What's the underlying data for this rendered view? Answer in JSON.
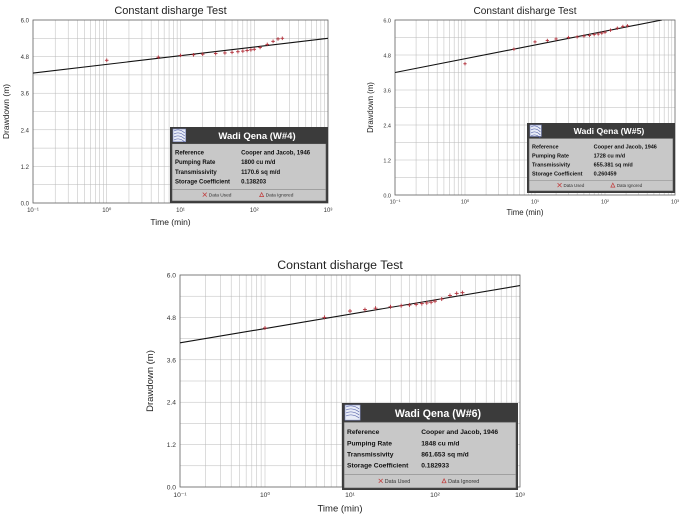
{
  "chart_data": [
    {
      "type": "scatter",
      "title": "Constant disharge Test",
      "xlabel": "Time (min)",
      "ylabel": "Drawdown (m)",
      "xscale": "log",
      "xlim": [
        0.1,
        1000
      ],
      "ylim": [
        0,
        6
      ],
      "x_ticks": [
        "10⁻¹",
        "10⁰",
        "10¹",
        "10²",
        "10³"
      ],
      "y_ticks": [
        "0.0",
        "1.2",
        "2.4",
        "3.6",
        "4.8",
        "6.0"
      ],
      "grid": true,
      "points": [
        {
          "x": 1,
          "y": 4.68
        },
        {
          "x": 5,
          "y": 4.78
        },
        {
          "x": 10,
          "y": 4.84
        },
        {
          "x": 15,
          "y": 4.86
        },
        {
          "x": 20,
          "y": 4.88
        },
        {
          "x": 30,
          "y": 4.9
        },
        {
          "x": 40,
          "y": 4.92
        },
        {
          "x": 50,
          "y": 4.94
        },
        {
          "x": 60,
          "y": 4.96
        },
        {
          "x": 70,
          "y": 4.98
        },
        {
          "x": 80,
          "y": 5.0
        },
        {
          "x": 90,
          "y": 5.02
        },
        {
          "x": 100,
          "y": 5.04
        },
        {
          "x": 120,
          "y": 5.1
        },
        {
          "x": 150,
          "y": 5.2
        },
        {
          "x": 180,
          "y": 5.3
        },
        {
          "x": 210,
          "y": 5.38
        },
        {
          "x": 240,
          "y": 5.4
        }
      ],
      "fit_line": {
        "x": [
          0.1,
          1000
        ],
        "y": [
          4.26,
          5.4
        ]
      },
      "info_box": {
        "title": "Wadi Qena (W#4)",
        "rows": [
          {
            "label": "Reference",
            "value": "Cooper and Jacob, 1946"
          },
          {
            "label": "Pumping Rate",
            "value": "1800  cu m/d"
          },
          {
            "label": "Transmissivity",
            "value": "1170.6  sq m/d"
          },
          {
            "label": "Storage Coefficient",
            "value": "0.138203"
          }
        ],
        "legend": [
          "Data Used",
          "Data Ignored"
        ]
      }
    },
    {
      "type": "scatter",
      "title": "Constant disharge Test",
      "xlabel": "Time (min)",
      "ylabel": "Drawdown (m)",
      "xscale": "log",
      "xlim": [
        0.1,
        1000
      ],
      "ylim": [
        0,
        6
      ],
      "x_ticks": [
        "10⁻¹",
        "10⁰",
        "10¹",
        "10²",
        "10³"
      ],
      "y_ticks": [
        "0.0",
        "1.2",
        "2.4",
        "3.6",
        "4.8",
        "6.0"
      ],
      "grid": true,
      "points": [
        {
          "x": 1,
          "y": 4.5
        },
        {
          "x": 5,
          "y": 5.0
        },
        {
          "x": 10,
          "y": 5.25
        },
        {
          "x": 15,
          "y": 5.3
        },
        {
          "x": 20,
          "y": 5.35
        },
        {
          "x": 30,
          "y": 5.4
        },
        {
          "x": 40,
          "y": 5.42
        },
        {
          "x": 50,
          "y": 5.45
        },
        {
          "x": 60,
          "y": 5.47
        },
        {
          "x": 70,
          "y": 5.5
        },
        {
          "x": 80,
          "y": 5.52
        },
        {
          "x": 90,
          "y": 5.55
        },
        {
          "x": 100,
          "y": 5.58
        },
        {
          "x": 120,
          "y": 5.65
        },
        {
          "x": 150,
          "y": 5.72
        },
        {
          "x": 180,
          "y": 5.78
        },
        {
          "x": 210,
          "y": 5.8
        }
      ],
      "fit_line": {
        "x": [
          0.1,
          650
        ],
        "y": [
          4.2,
          6.0
        ]
      },
      "info_box": {
        "title": "Wadi Qena (W#5)",
        "rows": [
          {
            "label": "Reference",
            "value": "Cooper and Jacob, 1946"
          },
          {
            "label": "Pumping Rate",
            "value": "1728  cu m/d"
          },
          {
            "label": "Transmissivity",
            "value": "655.381  sq m/d"
          },
          {
            "label": "Storage Coefficient",
            "value": "0.260459"
          }
        ],
        "legend": [
          "Data Used",
          "Data Ignored"
        ]
      }
    },
    {
      "type": "scatter",
      "title": "Constant disharge Test",
      "xlabel": "Time (min)",
      "ylabel": "Drawdown (m)",
      "xscale": "log",
      "xlim": [
        0.1,
        1000
      ],
      "ylim": [
        0,
        6
      ],
      "x_ticks": [
        "10⁻¹",
        "10⁰",
        "10¹",
        "10²",
        "10³"
      ],
      "y_ticks": [
        "0.0",
        "1.2",
        "2.4",
        "3.6",
        "4.8",
        "6.0"
      ],
      "grid": true,
      "points": [
        {
          "x": 1,
          "y": 4.5
        },
        {
          "x": 5,
          "y": 4.8
        },
        {
          "x": 10,
          "y": 4.98
        },
        {
          "x": 15,
          "y": 5.02
        },
        {
          "x": 20,
          "y": 5.06
        },
        {
          "x": 30,
          "y": 5.1
        },
        {
          "x": 40,
          "y": 5.13
        },
        {
          "x": 50,
          "y": 5.15
        },
        {
          "x": 60,
          "y": 5.17
        },
        {
          "x": 70,
          "y": 5.19
        },
        {
          "x": 80,
          "y": 5.21
        },
        {
          "x": 90,
          "y": 5.23
        },
        {
          "x": 100,
          "y": 5.26
        },
        {
          "x": 120,
          "y": 5.32
        },
        {
          "x": 150,
          "y": 5.42
        },
        {
          "x": 180,
          "y": 5.48
        },
        {
          "x": 210,
          "y": 5.5
        }
      ],
      "fit_line": {
        "x": [
          0.1,
          1000
        ],
        "y": [
          4.08,
          5.7
        ]
      },
      "info_box": {
        "title": "Wadi Qena (W#6)",
        "rows": [
          {
            "label": "Reference",
            "value": "Cooper and Jacob, 1946"
          },
          {
            "label": "Pumping Rate",
            "value": "1848  cu m/d"
          },
          {
            "label": "Transmissivity",
            "value": "861.653  sq m/d"
          },
          {
            "label": "Storage Coefficient",
            "value": "0.182933"
          }
        ],
        "legend": [
          "Data Used",
          "Data Ignored"
        ]
      }
    }
  ]
}
